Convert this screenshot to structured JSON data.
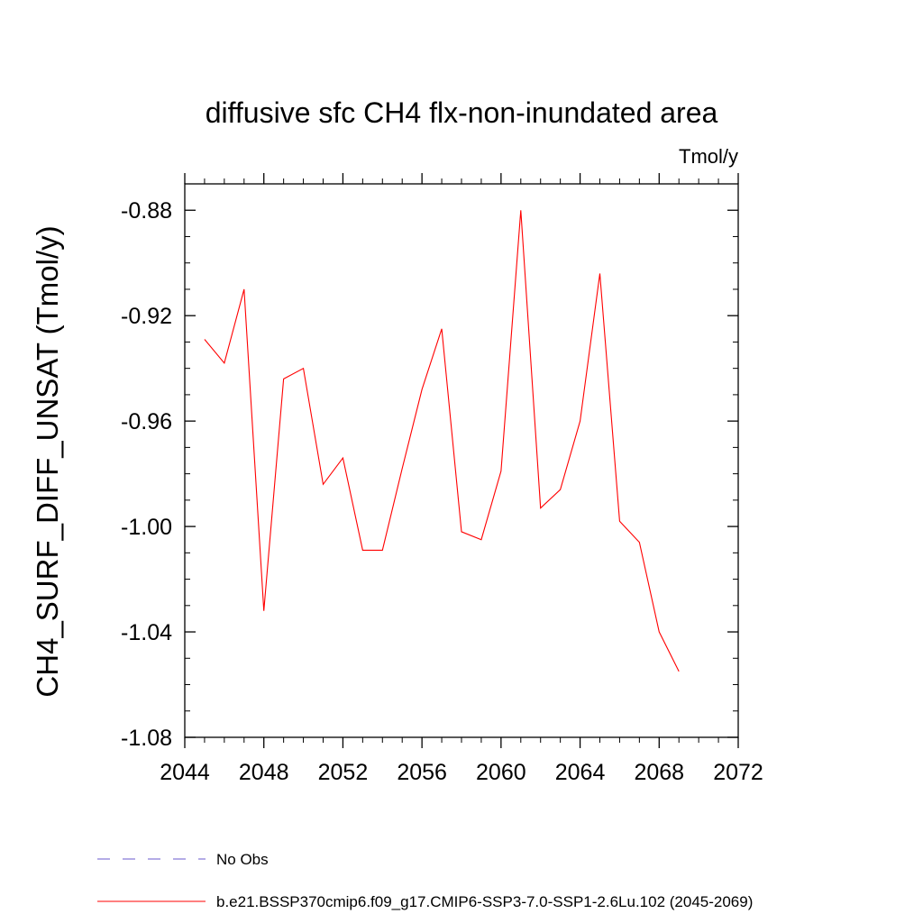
{
  "chart_data": {
    "type": "line",
    "title": "diffusive sfc CH4 flx-non-inundated area",
    "units": "Tmol/y",
    "ylabel": "CH4_SURF_DIFF_UNSAT  (Tmol/y)",
    "xlabel": "",
    "xlim": [
      2044,
      2072
    ],
    "ylim": [
      -1.08,
      -0.87
    ],
    "x_ticks": [
      "2044",
      "2048",
      "2052",
      "2056",
      "2060",
      "2064",
      "2068",
      "2072"
    ],
    "y_ticks": [
      "-0.88",
      "-0.92",
      "-0.96",
      "-1.00",
      "-1.04",
      "-1.08"
    ],
    "grid": false,
    "series": [
      {
        "name": "b.e21.BSSP370cmip6.f09_g17.CMIP6-SSP3-7.0-SSP1-2.6Lu.102 (2045-2069)",
        "color": "#ff0000",
        "style": "solid",
        "x": [
          2045,
          2046,
          2047,
          2048,
          2049,
          2050,
          2051,
          2052,
          2053,
          2054,
          2055,
          2056,
          2057,
          2058,
          2059,
          2060,
          2061,
          2062,
          2063,
          2064,
          2065,
          2066,
          2067,
          2068,
          2069
        ],
        "y": [
          -0.929,
          -0.938,
          -0.91,
          -1.032,
          -0.944,
          -0.94,
          -0.984,
          -0.974,
          -1.009,
          -1.009,
          -0.978,
          -0.948,
          -0.925,
          -1.002,
          -1.005,
          -0.979,
          -0.88,
          -0.993,
          -0.986,
          -0.96,
          -0.904,
          -0.998,
          -1.006,
          -1.04,
          -1.055
        ]
      }
    ],
    "legend": [
      {
        "label": "No Obs",
        "color": "#6a5acd",
        "style": "dashed"
      },
      {
        "label": "b.e21.BSSP370cmip6.f09_g17.CMIP6-SSP3-7.0-SSP1-2.6Lu.102 (2045-2069)",
        "color": "#ff0000",
        "style": "solid"
      }
    ],
    "legend_placement": "bottom-left"
  }
}
